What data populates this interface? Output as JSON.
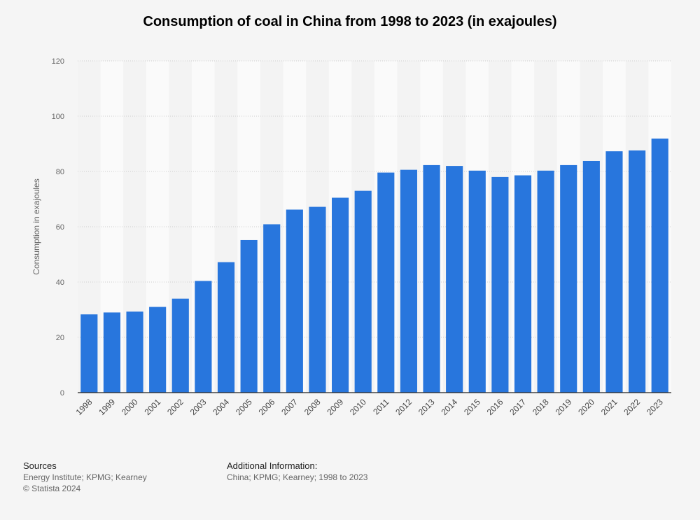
{
  "chart_data": {
    "type": "bar",
    "title": "Consumption of coal in China from 1998 to 2023 (in exajoules)",
    "ylabel": "Consumption in exajoules",
    "xlabel": "",
    "ylim": [
      0,
      120
    ],
    "yticks": [
      0,
      20,
      40,
      60,
      80,
      100,
      120
    ],
    "grid": true,
    "categories": [
      "1998",
      "1999",
      "2000",
      "2001",
      "2002",
      "2003",
      "2004",
      "2005",
      "2006",
      "2007",
      "2008",
      "2009",
      "2010",
      "2011",
      "2012",
      "2013",
      "2014",
      "2015",
      "2016",
      "2017",
      "2018",
      "2019",
      "2020",
      "2021",
      "2022",
      "2023"
    ],
    "values": [
      28.3,
      29.0,
      29.3,
      31.0,
      34.0,
      40.4,
      47.2,
      55.2,
      60.9,
      66.2,
      67.2,
      70.5,
      73.0,
      79.6,
      80.6,
      82.3,
      82.0,
      80.3,
      78.0,
      78.6,
      80.3,
      82.3,
      83.8,
      87.3,
      87.6,
      91.9
    ],
    "bar_color": "#2876dd"
  },
  "footer": {
    "sources_heading": "Sources",
    "sources_text": "Energy Institute; KPMG; Kearney",
    "copyright": "© Statista 2024",
    "info_heading": "Additional Information:",
    "info_text": "China; KPMG; Kearney; 1998 to 2023"
  }
}
